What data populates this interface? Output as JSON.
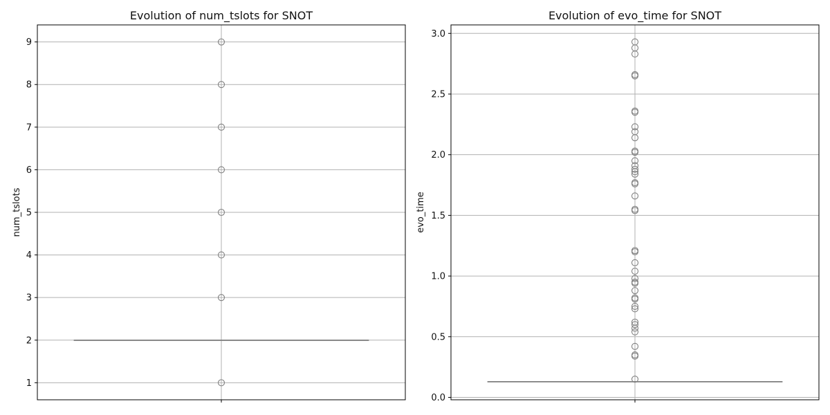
{
  "chart_data": [
    {
      "type": "box",
      "title": "Evolution of num_tslots for SNOT",
      "xlabel": "",
      "ylabel": "num_tslots",
      "ylim": [
        0.6,
        9.4
      ],
      "yticks": [
        1,
        2,
        3,
        4,
        5,
        6,
        7,
        8,
        9
      ],
      "grid": true,
      "orientation": "vertical",
      "box": {
        "q1": 2,
        "median": 2,
        "q3": 2,
        "whisker_low": 2,
        "whisker_high": 2
      },
      "outliers": [
        1,
        3,
        4,
        5,
        6,
        7,
        8,
        9
      ],
      "colors": {
        "box_edge": "#808080",
        "outlier_edge": "#808080",
        "grid": "#b0b0b0"
      }
    },
    {
      "type": "box",
      "title": "Evolution of evo_time for SNOT",
      "xlabel": "",
      "ylabel": "evo_time",
      "ylim": [
        -0.02,
        3.07
      ],
      "yticks": [
        0.0,
        0.5,
        1.0,
        1.5,
        2.0,
        2.5,
        3.0
      ],
      "grid": true,
      "orientation": "vertical",
      "box": {
        "q1": 0.13,
        "median": 0.13,
        "q3": 0.13,
        "whisker_low": 0.13,
        "whisker_high": 0.13
      },
      "outliers": [
        0.15,
        0.34,
        0.35,
        0.42,
        0.54,
        0.57,
        0.6,
        0.62,
        0.73,
        0.75,
        0.81,
        0.82,
        0.88,
        0.94,
        0.95,
        0.98,
        1.04,
        1.11,
        1.2,
        1.21,
        1.54,
        1.55,
        1.66,
        1.76,
        1.77,
        1.84,
        1.86,
        1.88,
        1.91,
        1.95,
        2.02,
        2.03,
        2.14,
        2.19,
        2.23,
        2.35,
        2.36,
        2.65,
        2.66,
        2.83,
        2.88,
        2.93
      ],
      "colors": {
        "box_edge": "#808080",
        "outlier_edge": "#808080",
        "grid": "#b0b0b0"
      }
    }
  ]
}
